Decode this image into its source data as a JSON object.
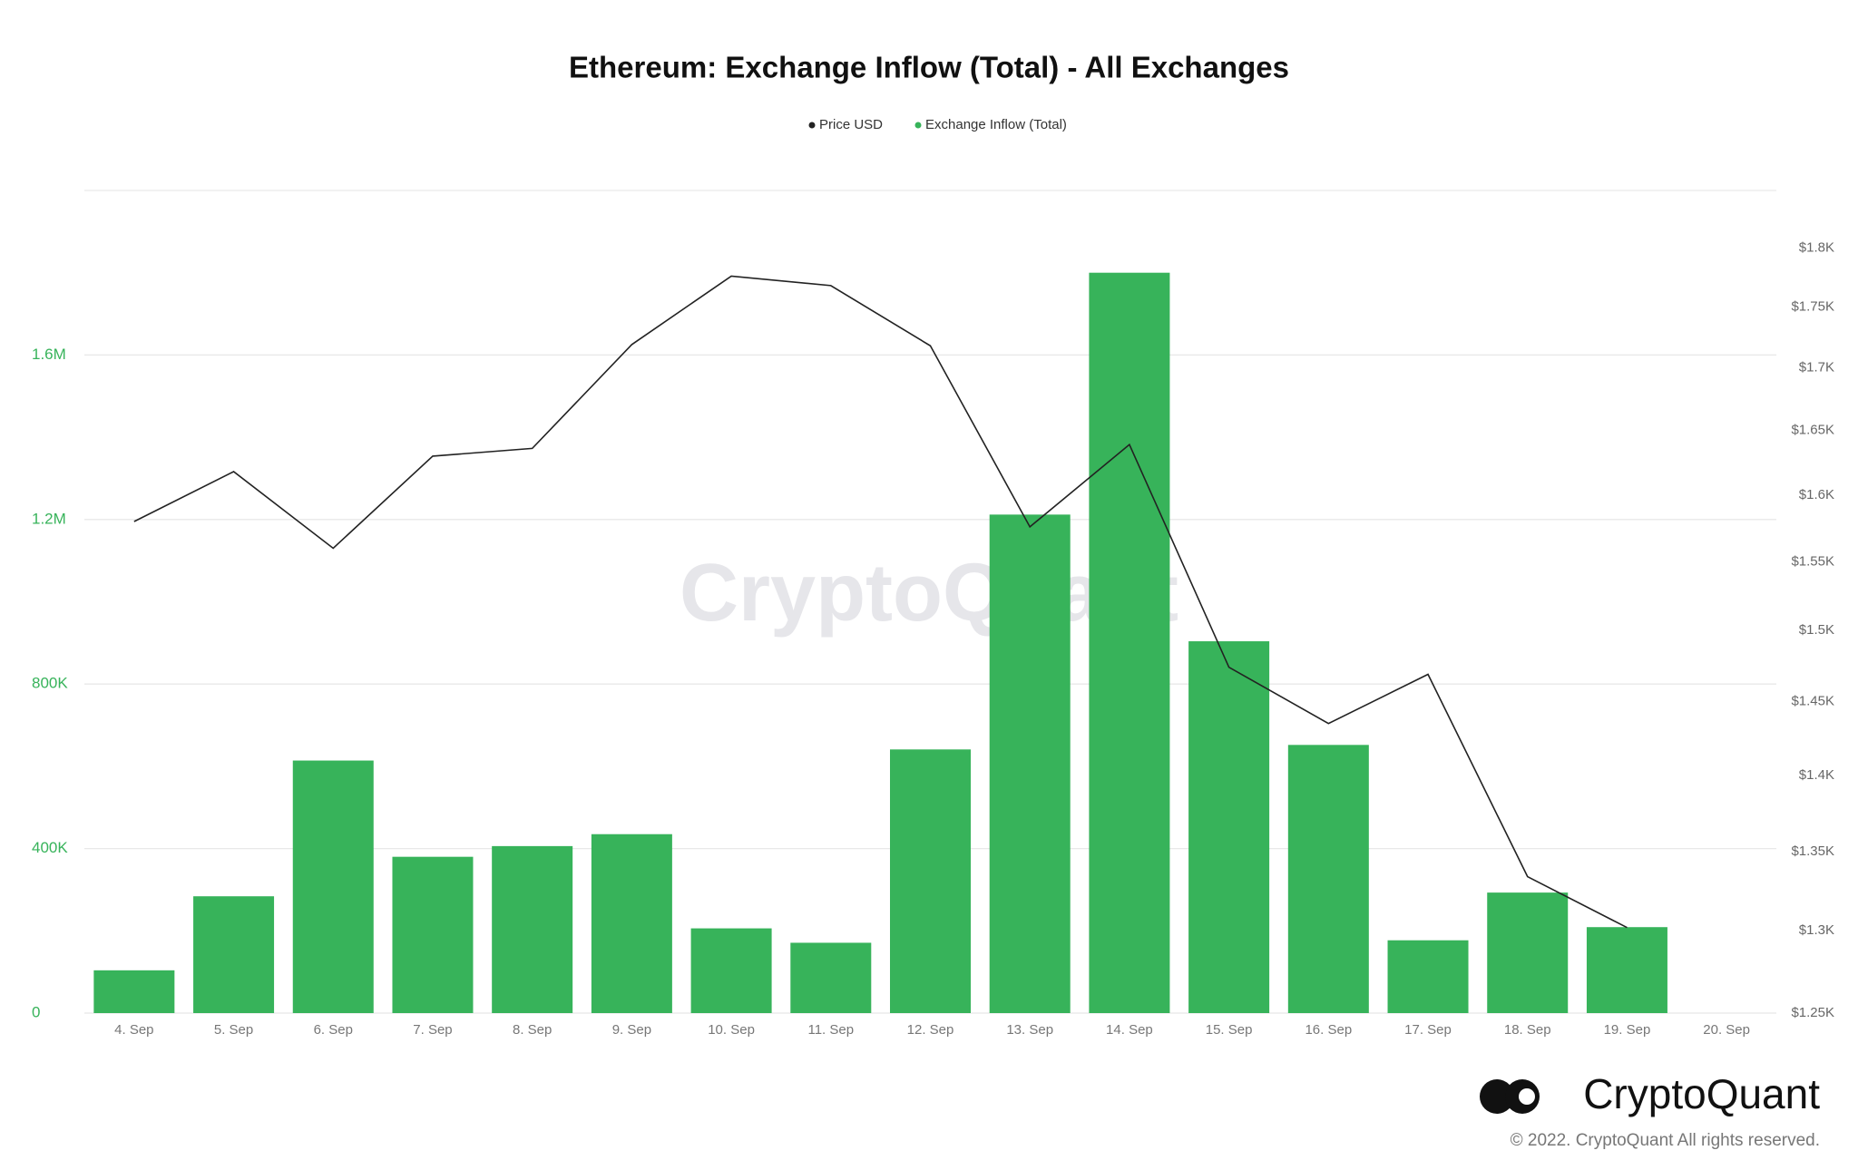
{
  "chart_data": {
    "type": "bar_line",
    "title": "Ethereum: Exchange Inflow (Total) - All Exchanges",
    "watermark": "CryptoQuant",
    "brand": "CryptoQuant",
    "copyright": "© 2022. CryptoQuant All rights reserved.",
    "categories": [
      "4. Sep",
      "5. Sep",
      "6. Sep",
      "7. Sep",
      "8. Sep",
      "9. Sep",
      "10. Sep",
      "11. Sep",
      "12. Sep",
      "13. Sep",
      "14. Sep",
      "15. Sep",
      "16. Sep",
      "17. Sep",
      "18. Sep",
      "19. Sep",
      "20. Sep"
    ],
    "series": [
      {
        "name": "Price USD",
        "color": "#222222",
        "type": "line",
        "axis": "y2",
        "values": [
          1580,
          1618,
          1560,
          1630,
          1636,
          1719,
          1776,
          1768,
          1718,
          1576,
          1639,
          1474,
          1435,
          1469,
          1334,
          1302,
          null
        ]
      },
      {
        "name": "Exchange Inflow (Total)",
        "color": "#37b35a",
        "type": "bar",
        "axis": "y",
        "values": [
          104000,
          284000,
          614000,
          380000,
          406000,
          435000,
          206000,
          171000,
          641000,
          1212000,
          1800000,
          904000,
          652000,
          177000,
          293000,
          209000,
          null
        ]
      }
    ],
    "ylim": [
      0,
      2000000
    ],
    "yticks": [
      0,
      {
        "value": 400000,
        "label": "400K"
      },
      {
        "value": 800000,
        "label": "800K"
      },
      {
        "value": 1200000,
        "label": "1.2M"
      },
      {
        "value": 1600000,
        "label": "1.6M"
      }
    ],
    "y2lim": [
      1250,
      1850
    ],
    "y2_log": true,
    "y2ticks": [
      {
        "value": 1250,
        "label": "$1.25K"
      },
      {
        "value": 1300,
        "label": "$1.3K"
      },
      {
        "value": 1350,
        "label": "$1.35K"
      },
      {
        "value": 1400,
        "label": "$1.4K"
      },
      {
        "value": 1450,
        "label": "$1.45K"
      },
      {
        "value": 1500,
        "label": "$1.5K"
      },
      {
        "value": 1550,
        "label": "$1.55K"
      },
      {
        "value": 1600,
        "label": "$1.6K"
      },
      {
        "value": 1650,
        "label": "$1.65K"
      },
      {
        "value": 1700,
        "label": "$1.7K"
      },
      {
        "value": 1750,
        "label": "$1.75K"
      },
      {
        "value": 1800,
        "label": "$1.8K"
      }
    ],
    "yaxis_color": "#37b35a",
    "grid": true,
    "legend": "top"
  }
}
